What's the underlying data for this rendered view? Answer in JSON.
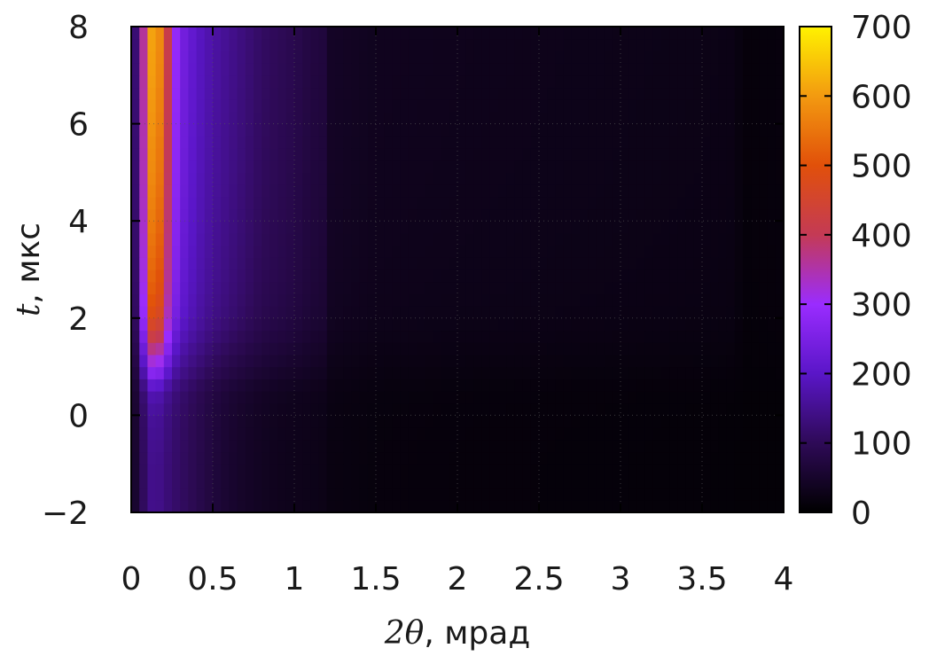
{
  "chart_data": {
    "type": "heatmap",
    "title": "",
    "xlabel": "2θ, мрад",
    "ylabel": "t, мкс",
    "xlabel_parts": {
      "symbol": "2θ",
      "rest": ", мрад"
    },
    "ylabel_parts": {
      "symbol": "t",
      "rest": ", мкс"
    },
    "xlim": [
      0,
      4
    ],
    "ylim": [
      -2,
      8
    ],
    "x_ticks": [
      0,
      0.5,
      1,
      1.5,
      2,
      2.5,
      3,
      3.5,
      4
    ],
    "x_tick_labels": [
      "0",
      "0.5",
      "1",
      "1.5",
      "2",
      "2.5",
      "3",
      "3.5",
      "4"
    ],
    "y_ticks": [
      -2,
      0,
      2,
      4,
      6,
      8
    ],
    "y_tick_labels": [
      "−2",
      "0",
      "2",
      "4",
      "6",
      "8"
    ],
    "grid": true,
    "colorbar": {
      "range": [
        0,
        700
      ],
      "ticks": [
        0,
        100,
        200,
        300,
        400,
        500,
        600,
        700
      ],
      "tick_labels": [
        "0",
        "100",
        "200",
        "300",
        "400",
        "500",
        "600",
        "700"
      ],
      "colormap": [
        "#000000",
        "#2e0a57",
        "#5a16c8",
        "#9a2cff",
        "#c43a55",
        "#e1500a",
        "#f39a10",
        "#fff200"
      ]
    },
    "x_profile": {
      "x": [
        0,
        0.05,
        0.1,
        0.15,
        0.2,
        0.25,
        0.3,
        0.4,
        0.5,
        0.6,
        0.7,
        0.8,
        0.9,
        1.0,
        1.1,
        1.18,
        1.2,
        1.5,
        2.0,
        2.5,
        3.0,
        3.5,
        3.7,
        3.75,
        4.0
      ],
      "late_value": [
        90,
        160,
        560,
        660,
        500,
        330,
        250,
        200,
        170,
        150,
        130,
        110,
        100,
        90,
        75,
        70,
        45,
        35,
        32,
        30,
        28,
        26,
        24,
        12,
        15
      ],
      "early_value": [
        40,
        70,
        140,
        150,
        135,
        120,
        110,
        90,
        70,
        55,
        45,
        38,
        33,
        30,
        28,
        25,
        20,
        15,
        13,
        12,
        11,
        10,
        9,
        8,
        8
      ]
    },
    "t_profile": {
      "t": [
        -2,
        -1.5,
        -1,
        -0.5,
        0,
        0.5,
        0.8,
        1.2,
        1.6,
        2.0,
        2.5,
        3.0,
        4.0,
        5.0,
        6.0,
        7.0,
        8.0
      ],
      "weight": [
        0.28,
        0.28,
        0.28,
        0.29,
        0.3,
        0.34,
        0.45,
        0.58,
        0.7,
        0.8,
        0.85,
        0.88,
        0.92,
        0.95,
        0.97,
        0.99,
        1.0
      ]
    }
  }
}
